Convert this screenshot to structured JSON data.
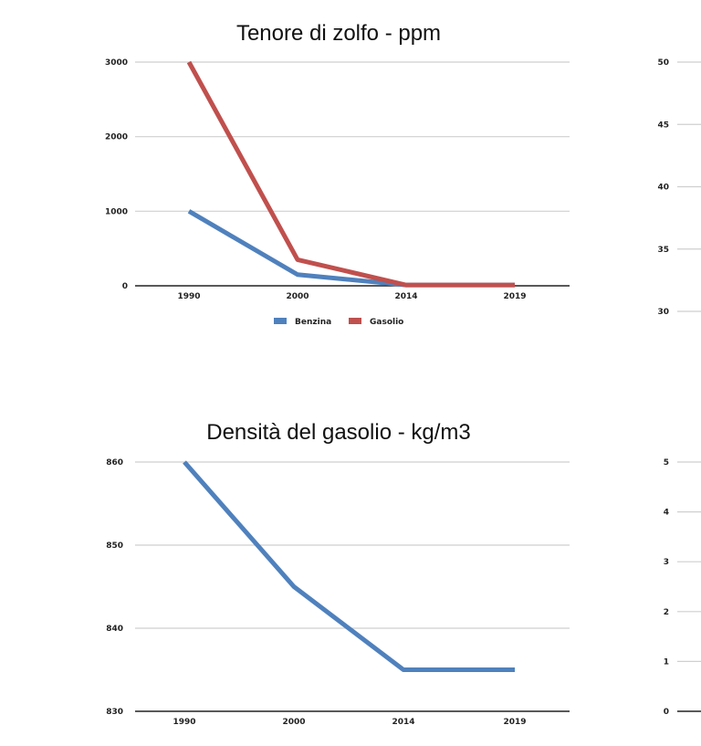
{
  "chart_data": [
    {
      "type": "line",
      "title": "Tenore di zolfo - ppm",
      "categories": [
        "1990",
        "2000",
        "2014",
        "2019"
      ],
      "series": [
        {
          "name": "Benzina",
          "values": [
            1000,
            150,
            10,
            10
          ],
          "color": "#4f81bd"
        },
        {
          "name": "Gasolio",
          "values": [
            3000,
            350,
            10,
            10
          ],
          "color": "#c0504d"
        }
      ],
      "yticks": [
        "0",
        "1000",
        "2000",
        "3000"
      ],
      "ylim": [
        0,
        3000
      ],
      "grid": true,
      "legend": "bottom"
    },
    {
      "type": "line",
      "title": "",
      "categories": [],
      "series": [],
      "yticks": [
        "30",
        "35",
        "40",
        "45",
        "50"
      ],
      "ylim": [
        30,
        50
      ],
      "grid": true
    },
    {
      "type": "line",
      "title": "Densità del gasolio - kg/m3",
      "categories": [
        "1990",
        "2000",
        "2014",
        "2019"
      ],
      "series": [
        {
          "values": [
            860,
            845,
            835,
            835
          ],
          "color": "#4f81bd"
        }
      ],
      "yticks": [
        "830",
        "840",
        "850",
        "860"
      ],
      "ylim": [
        830,
        860
      ],
      "grid": true
    },
    {
      "type": "line",
      "title": "",
      "categories": [],
      "series": [],
      "yticks": [
        "0",
        "1",
        "2",
        "3",
        "4",
        "5"
      ],
      "ylim": [
        0,
        5
      ],
      "grid": true
    }
  ]
}
